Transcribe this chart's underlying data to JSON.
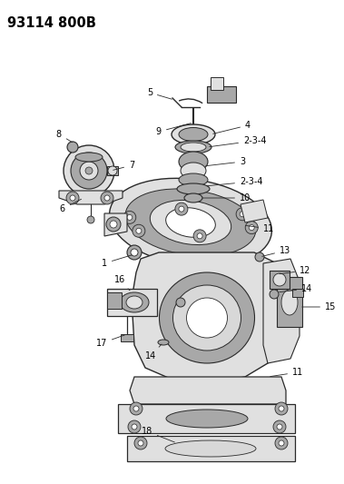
{
  "title": "93114 800B",
  "bg_color": "#f5f5f0",
  "line_color": "#2a2a2a",
  "text_color": "#000000",
  "title_fontsize": 10.5,
  "label_fontsize": 7,
  "figsize": [
    3.79,
    5.33
  ],
  "dpi": 100
}
